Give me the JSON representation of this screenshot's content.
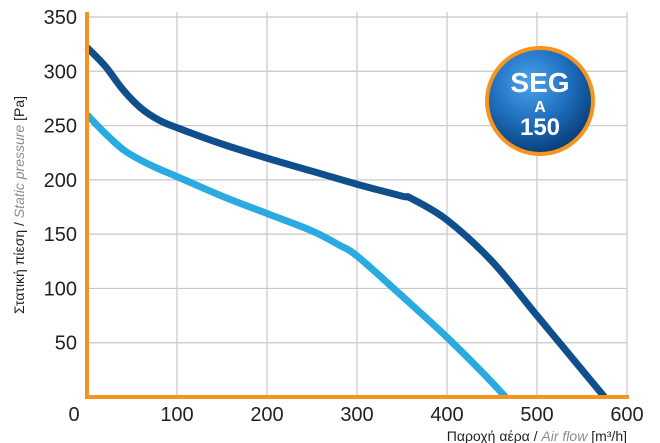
{
  "chart_data": {
    "type": "line",
    "xlim": [
      0,
      600
    ],
    "ylim": [
      0,
      350
    ],
    "x_ticks": [
      0,
      100,
      200,
      300,
      400,
      500,
      600
    ],
    "y_ticks": [
      50,
      100,
      150,
      200,
      250,
      300,
      350
    ],
    "x_tick_labels": [
      "0",
      "100",
      "200",
      "300",
      "400",
      "500",
      "600"
    ],
    "y_tick_labels": [
      "50",
      "100",
      "150",
      "200",
      "250",
      "300",
      "350"
    ],
    "grid": true,
    "xlabel": {
      "prefix": "Παροχή αέρα / ",
      "italic": "Air flow",
      "unit": " [m³/h]"
    },
    "ylabel": {
      "prefix": "Στατική πίεση / ",
      "italic": "Static pressure",
      "unit": " [Pa]"
    },
    "series": [
      {
        "color": "#0f4f8c",
        "x": [
          0,
          20,
          40,
          60,
          80,
          100,
          150,
          200,
          250,
          300,
          350,
          360,
          400,
          450,
          500,
          550,
          575
        ],
        "y": [
          322,
          305,
          283,
          266,
          255,
          248,
          233,
          220,
          208,
          196,
          185,
          183,
          163,
          125,
          75,
          25,
          0
        ]
      },
      {
        "color": "#29abe2",
        "x": [
          0,
          20,
          40,
          60,
          80,
          100,
          150,
          200,
          250,
          280,
          300,
          350,
          400,
          440,
          465
        ],
        "y": [
          260,
          243,
          228,
          218,
          210,
          203,
          185,
          169,
          153,
          140,
          130,
          93,
          55,
          22,
          0
        ]
      }
    ],
    "badge": {
      "line1": "SEG",
      "line2": "A",
      "line3": "150"
    }
  },
  "colors": {
    "axis": "#f7941d",
    "grid": "#c8c8c8",
    "text": "#231f20",
    "italic_text": "#8a8c8e",
    "badge_light": "#3a8fd6",
    "badge_dark": "#0a3f7a",
    "badge_ring": "#f7941d"
  }
}
